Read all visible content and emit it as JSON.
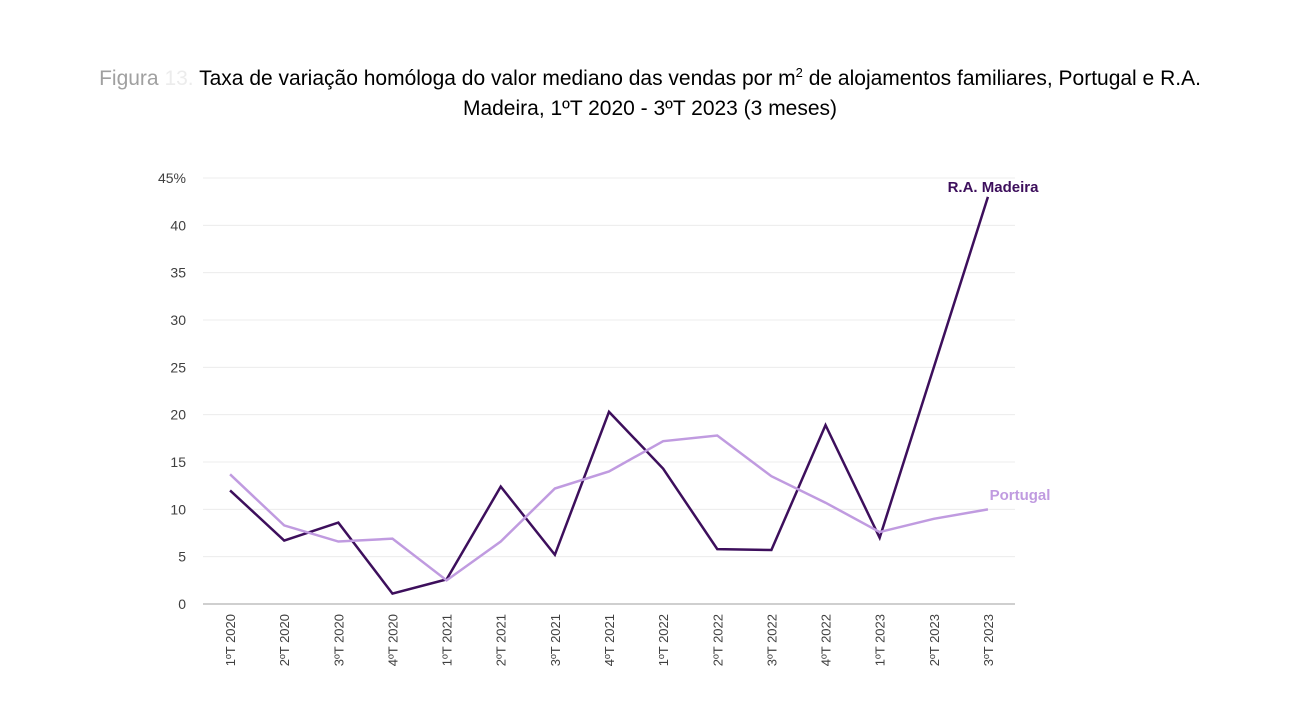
{
  "title": {
    "prefix": "Figura",
    "number": "13.",
    "line1_a": "Taxa de variação homóloga do valor mediano das vendas por m",
    "sup": "2",
    "line1_b": " de alojamentos familiares, Portugal e R.A.",
    "line2": "Madeira, 1ºT 2020 - 3ºT 2023 (3 meses)"
  },
  "chart_data": {
    "type": "line",
    "title": "Taxa de variação homóloga do valor mediano das vendas por m2 de alojamentos familiares, Portugal e R.A. Madeira, 1ºT 2020 - 3ºT 2023 (3 meses)",
    "categories": [
      "1ºT 2020",
      "2ºT 2020",
      "3ºT 2020",
      "4ºT 2020",
      "1ºT 2021",
      "2ºT 2021",
      "3ºT 2021",
      "4ºT 2021",
      "1ºT 2022",
      "2ºT 2022",
      "3ºT 2022",
      "4ºT 2022",
      "1ºT 2023",
      "2ºT 2023",
      "3ºT 2023"
    ],
    "yticks": [
      "0",
      "5",
      "10",
      "15",
      "20",
      "25",
      "30",
      "35",
      "40",
      "45%"
    ],
    "ylim": [
      0,
      45
    ],
    "grid": true,
    "series": [
      {
        "name": "R.A. Madeira",
        "color": "#3d0f5c",
        "values": [
          12.0,
          6.7,
          8.6,
          1.1,
          2.6,
          12.4,
          5.2,
          20.3,
          14.3,
          5.8,
          5.7,
          18.9,
          7.0,
          25.0,
          43.0
        ]
      },
      {
        "name": "Portugal",
        "color": "#c09be0",
        "values": [
          13.7,
          8.3,
          6.6,
          6.9,
          2.5,
          6.6,
          12.2,
          14.0,
          17.2,
          17.8,
          13.5,
          10.7,
          7.6,
          9.0,
          10.0
        ]
      }
    ]
  }
}
